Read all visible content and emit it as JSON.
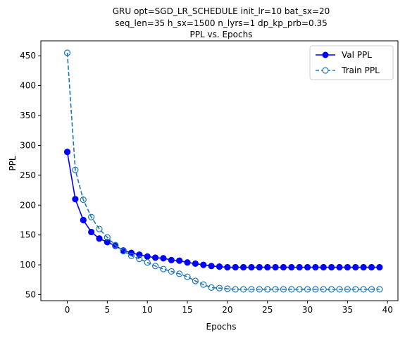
{
  "chart_data": {
    "type": "line",
    "title": [
      "GRU opt=SGD_LR_SCHEDULE init_lr=10 bat_sx=20",
      "seq_len=35 h_sx=1500 n_lyrs=1 dp_kp_prb=0.35",
      "PPL vs. Epochs"
    ],
    "xlabel": "Epochs",
    "ylabel": "PPL",
    "xlim": [
      -3.3,
      41.3
    ],
    "ylim": [
      40,
      475
    ],
    "xticks": [
      0,
      5,
      10,
      15,
      20,
      25,
      30,
      35,
      40
    ],
    "yticks": [
      50,
      100,
      150,
      200,
      250,
      300,
      350,
      400,
      450
    ],
    "grid": false,
    "legend_position": "top-right",
    "x": [
      0,
      1,
      2,
      3,
      4,
      5,
      6,
      7,
      8,
      9,
      10,
      11,
      12,
      13,
      14,
      15,
      16,
      17,
      18,
      19,
      20,
      21,
      22,
      23,
      24,
      25,
      26,
      27,
      28,
      29,
      30,
      31,
      32,
      33,
      34,
      35,
      36,
      37,
      38,
      39
    ],
    "series": [
      {
        "name": "Val PPL",
        "color": "#0000ff",
        "line_style": "solid",
        "marker": "filled-circle",
        "values": [
          289,
          210,
          175,
          155,
          144,
          138,
          132,
          124,
          120,
          117,
          114,
          112,
          111,
          108,
          107,
          104,
          102,
          100,
          98,
          97,
          96,
          96,
          96,
          96,
          96,
          96,
          96,
          96,
          96,
          96,
          96,
          96,
          96,
          96,
          96,
          96,
          96,
          96,
          96,
          96
        ]
      },
      {
        "name": "Train PPL",
        "color": "#1f77b4",
        "line_style": "dashed",
        "marker": "open-circle",
        "values": [
          455,
          259,
          209,
          180,
          160,
          146,
          133,
          123,
          115,
          110,
          104,
          98,
          93,
          89,
          85,
          80,
          73,
          67,
          62,
          61,
          60,
          59,
          59,
          59,
          59,
          59,
          59,
          59,
          59,
          59,
          59,
          59,
          59,
          59,
          59,
          59,
          59,
          59,
          59,
          59
        ]
      }
    ]
  }
}
